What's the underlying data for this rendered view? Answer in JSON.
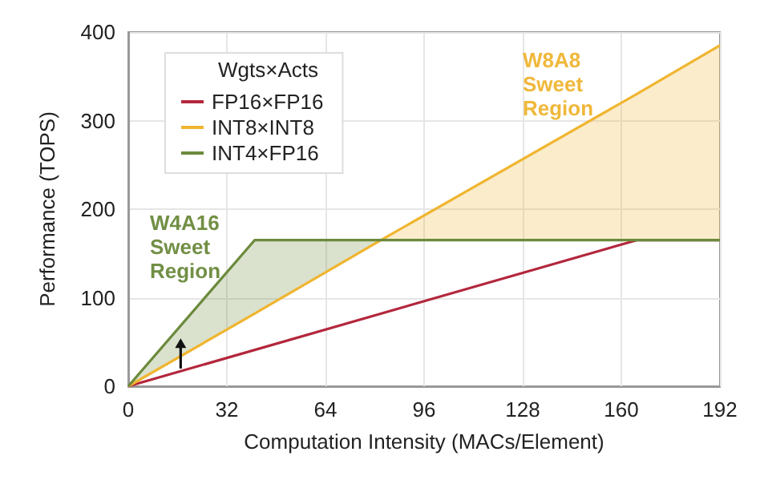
{
  "chart_data": {
    "type": "line",
    "xlabel": "Computation Intensity (MACs/Element)",
    "ylabel": "Performance (TOPS)",
    "legend_title": "Wgts×Acts",
    "legend": "top left",
    "grid": true,
    "marker": "none",
    "line_style": "solid",
    "xlim": [
      0,
      192
    ],
    "xticks": [
      0,
      32,
      64,
      96,
      128,
      160,
      192
    ],
    "ylim": [
      0,
      400
    ],
    "yticks": [
      0,
      100,
      200,
      300,
      400
    ],
    "series": [
      {
        "name": "FP16×FP16",
        "color": "#b3273c",
        "x": [
          0,
          165,
          192
        ],
        "values": [
          0,
          165,
          165
        ]
      },
      {
        "name": "INT8×INT8",
        "color": "#f0b530",
        "x": [
          0,
          41,
          82,
          165,
          192
        ],
        "values": [
          0,
          82,
          165,
          330,
          385
        ],
        "lower": [
          null,
          null,
          165,
          165,
          165
        ],
        "upper": [
          null,
          null,
          165,
          330,
          385
        ]
      },
      {
        "name": "INT4×FP16",
        "color": "#6b8a3c",
        "x": [
          0,
          41,
          82,
          192
        ],
        "values": [
          0,
          165,
          165,
          165
        ],
        "lower": [
          0,
          82,
          165,
          null
        ],
        "upper": [
          0,
          165,
          165,
          null
        ]
      }
    ],
    "annotations": [
      "W4A16\nSweet\nRegion",
      "W8A8\nSweet\nRegion"
    ]
  }
}
